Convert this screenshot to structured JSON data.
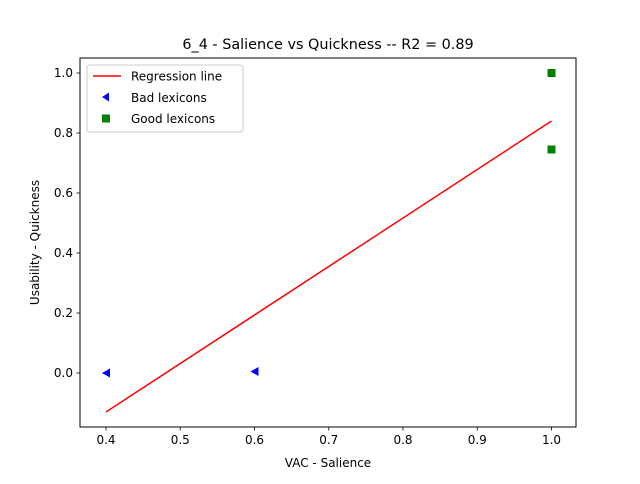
{
  "chart_data": {
    "type": "scatter",
    "title": "6_4 - Salience  vs  Quickness -- R2 = 0.89",
    "xlabel": "VAC - Salience",
    "ylabel": "Usability - Quickness",
    "xlim": [
      0.365,
      1.033
    ],
    "ylim": [
      -0.18,
      1.05
    ],
    "xticks": [
      0.4,
      0.5,
      0.6,
      0.7,
      0.8,
      0.9,
      1.0
    ],
    "xtick_labels": [
      "0.4",
      "0.5",
      "0.6",
      "0.7",
      "0.8",
      "0.9",
      "1.0"
    ],
    "yticks": [
      0.0,
      0.2,
      0.4,
      0.6,
      0.8,
      1.0
    ],
    "ytick_labels": [
      "0.0",
      "0.2",
      "0.4",
      "0.6",
      "0.8",
      "1.0"
    ],
    "grid": false,
    "legend_position": "top-left",
    "series": [
      {
        "name": "Regression line",
        "kind": "line",
        "color": "#ff0000",
        "x": [
          0.4,
          1.0
        ],
        "y": [
          -0.13,
          0.84
        ]
      },
      {
        "name": "Bad lexicons",
        "kind": "scatter",
        "marker": "triangle-left",
        "color": "#0000ff",
        "x": [
          0.4,
          0.6
        ],
        "y": [
          0.0,
          0.005
        ]
      },
      {
        "name": "Good lexicons",
        "kind": "scatter",
        "marker": "square",
        "color": "#008000",
        "x": [
          1.0,
          1.0
        ],
        "y": [
          1.0,
          0.745
        ]
      }
    ]
  }
}
